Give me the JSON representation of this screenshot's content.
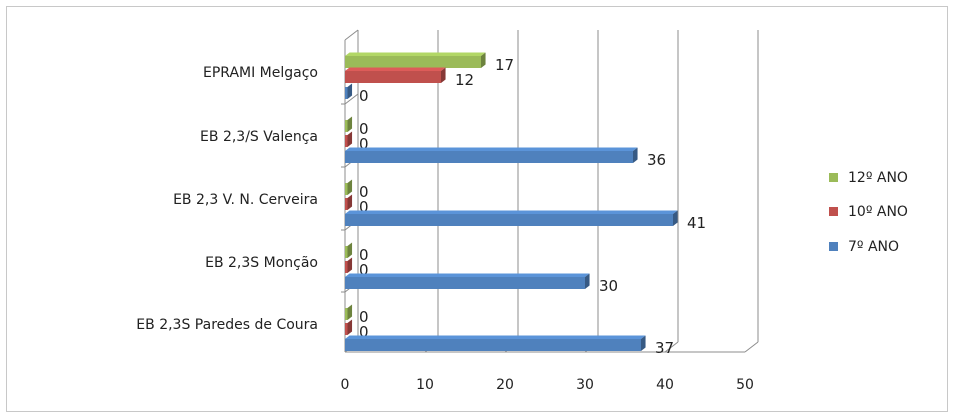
{
  "chart_data": {
    "type": "bar",
    "orientation": "horizontal",
    "style": "3d",
    "categories": [
      "EPRAMI Melgaço",
      "EB 2,3/S Valença",
      "EB 2,3 V. N. Cerveira",
      "EB 2,3S Monção",
      "EB 2,3S Paredes de Coura"
    ],
    "series": [
      {
        "name": "12º ANO",
        "color": "#9BBB59",
        "values": [
          17,
          0,
          0,
          0,
          0
        ]
      },
      {
        "name": "10º ANO",
        "color": "#C0504D",
        "values": [
          12,
          0,
          0,
          0,
          0
        ]
      },
      {
        "name": "7º ANO",
        "color": "#4F81BD",
        "values": [
          0,
          36,
          41,
          30,
          37
        ]
      }
    ],
    "xlim": [
      0,
      50
    ],
    "xticks": [
      "0",
      "10",
      "20",
      "30",
      "40",
      "50"
    ],
    "grid": true,
    "legend": "right",
    "title": "",
    "xlabel": "",
    "ylabel": ""
  }
}
